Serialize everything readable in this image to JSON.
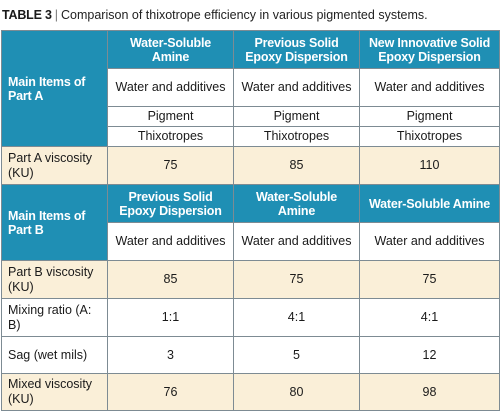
{
  "caption": {
    "table_number": "TABLE 3",
    "separator": "|",
    "text": "Comparison of thixotrope efficiency in various pigmented systems."
  },
  "part_a": {
    "label": "Main Items of Part A",
    "columns": [
      "Water-Soluble Amine",
      "Previous Solid Epoxy Dispersion",
      "New Innovative Solid Epoxy Dispersion"
    ],
    "items": [
      [
        "Water and additives",
        "Water and additives",
        "Water and additives"
      ],
      [
        "Pigment",
        "Pigment",
        "Pigment"
      ],
      [
        "Thixotropes",
        "Thixotropes",
        "Thixotropes"
      ]
    ],
    "viscosity": {
      "label": "Part A viscosity (KU)",
      "values": [
        "75",
        "85",
        "110"
      ]
    }
  },
  "part_b": {
    "label": "Main Items of Part B",
    "columns": [
      "Previous Solid Epoxy Dispersion",
      "Water-Soluble Amine",
      "Water-Soluble Amine"
    ],
    "items": [
      [
        "Water and additives",
        "Water and additives",
        "Water and additives"
      ]
    ],
    "viscosity": {
      "label": "Part B viscosity (KU)",
      "values": [
        "85",
        "75",
        "75"
      ]
    }
  },
  "results": [
    {
      "label": "Mixing ratio (A: B)",
      "values": [
        "1:1",
        "4:1",
        "4:1"
      ]
    },
    {
      "label": "Sag (wet mils)",
      "values": [
        "3",
        "5",
        "12"
      ]
    },
    {
      "label": "Mixed viscosity (KU)",
      "values": [
        "76",
        "80",
        "98"
      ]
    }
  ]
}
